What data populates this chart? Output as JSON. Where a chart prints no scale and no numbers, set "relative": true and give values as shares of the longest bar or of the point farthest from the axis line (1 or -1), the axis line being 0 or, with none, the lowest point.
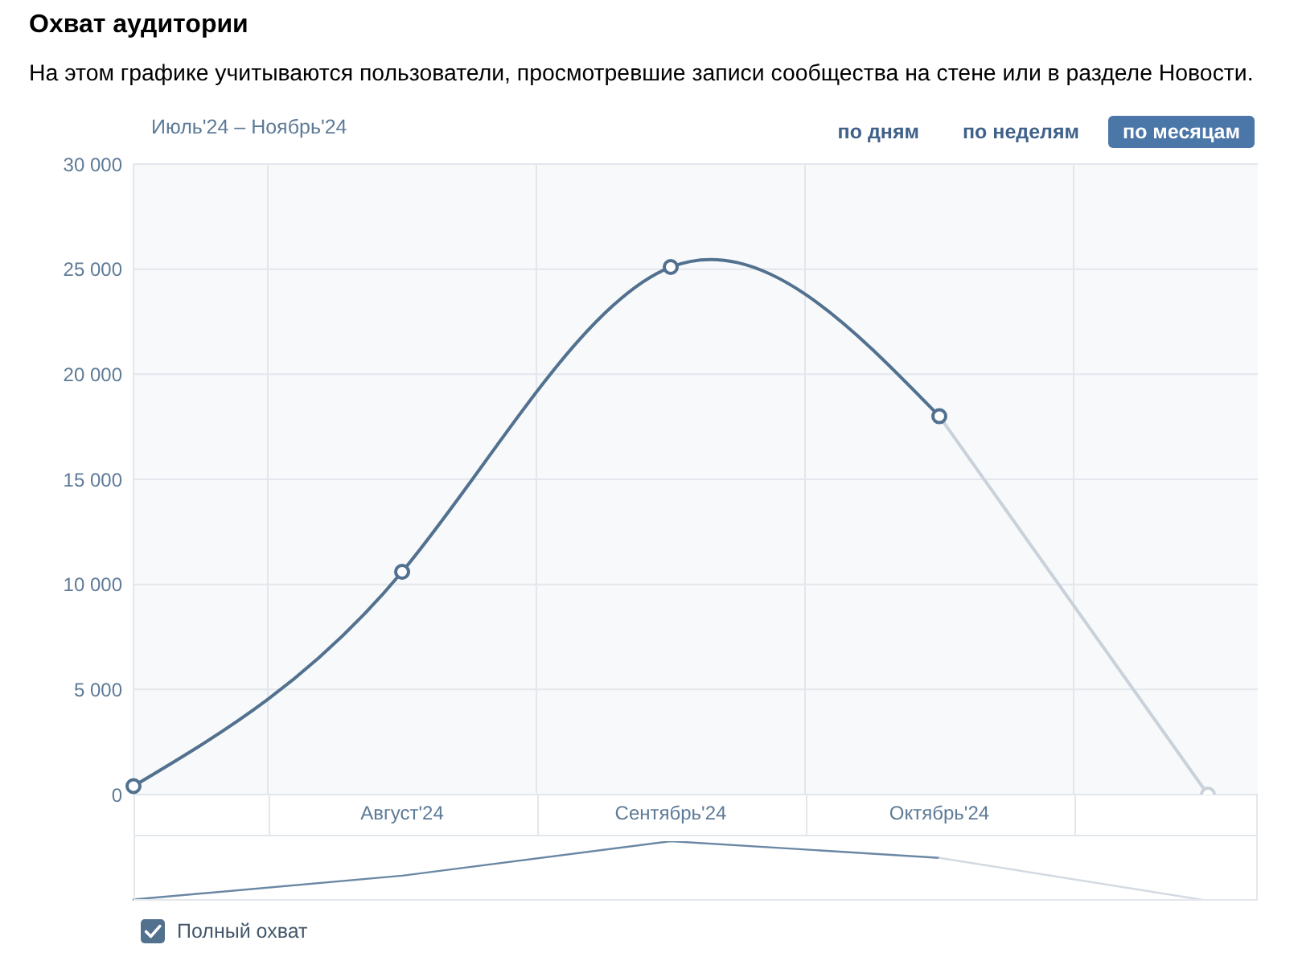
{
  "chart_data": [
    {
      "type": "line",
      "title": "Охват аудитории",
      "subtitle": "На этом графике учитываются пользователи, просмотревшие записи сообщества на стене или в разделе Новости.",
      "annotations": [
        "Июль'24 – Ноябрь'24",
        "по дням",
        "по неделям",
        "по месяцам"
      ],
      "categories": [
        null,
        "Август'24",
        "Сентябрь'24",
        "Октябрь'24",
        null
      ],
      "series": [
        {
          "name": "Полный охват",
          "color": "#52718f",
          "values": [
            400,
            10600,
            25100,
            18000,
            null
          ]
        },
        {
          "color": "#c9d1da",
          "values": [
            null,
            null,
            null,
            18000,
            0
          ]
        }
      ],
      "ylim": [
        0,
        30000
      ],
      "yticks": [
        0,
        {
          "value": 5000,
          "label": "5 000"
        },
        {
          "value": 10000,
          "label": "10 000"
        },
        {
          "value": 15000,
          "label": "15 000"
        },
        {
          "value": 20000,
          "label": "20 000"
        },
        {
          "value": 25000,
          "label": "25 000"
        },
        {
          "value": 30000,
          "label": "30 000"
        }
      ],
      "grid": true,
      "legend": "bottom left",
      "marker": "circle",
      "line_style": "solid"
    },
    {
      "type": "line",
      "relative": true,
      "categories": [
        null,
        null,
        null,
        null,
        null
      ],
      "series": [
        {
          "color": "#6a87a4",
          "values": [
            0.02,
            0.42,
            1,
            0.72,
            null
          ]
        },
        {
          "color": "#d3dae2",
          "values": [
            null,
            null,
            null,
            0.72,
            0
          ]
        }
      ]
    }
  ]
}
